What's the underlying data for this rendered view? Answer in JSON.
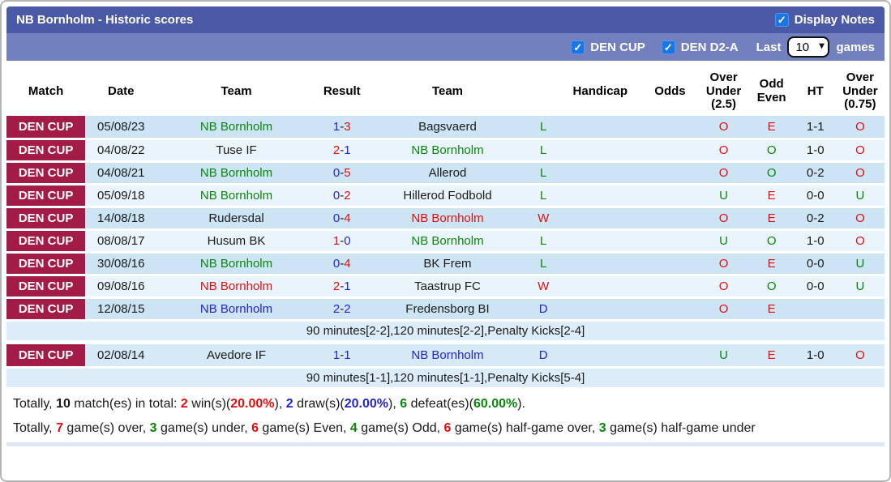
{
  "header": {
    "title": "NB Bornholm - Historic scores",
    "display_notes": {
      "label": "Display Notes",
      "checked": true
    }
  },
  "filters": {
    "leagues": [
      {
        "label": "DEN CUP",
        "checked": true
      },
      {
        "label": "DEN D2-A",
        "checked": true
      }
    ],
    "last_label": "Last",
    "games_count": "10",
    "games_label": "games"
  },
  "table": {
    "columns": [
      "Match",
      "Date",
      "Team",
      "Result",
      "Team",
      "",
      "Handicap",
      "Odds",
      "Over\nUnder\n(2.5)",
      "Odd\nEven",
      "HT",
      "Over\nUnder\n(0.75)"
    ],
    "rows": [
      {
        "type": "match",
        "shade": "a",
        "league": "DEN CUP",
        "date": "05/08/23",
        "team1": "NB Bornholm",
        "team1_color": "green",
        "score1": "1",
        "score1_color": "blue",
        "score2": "3",
        "score2_color": "red",
        "team2": "Bagsvaerd",
        "team2_color": "black",
        "wdl": "L",
        "wdl_color": "green",
        "handicap": "",
        "odds": "",
        "ou25": "O",
        "ou25_color": "red",
        "odd_even": "E",
        "odd_even_color": "red",
        "ht": "1-1",
        "ou075": "O",
        "ou075_color": "red"
      },
      {
        "type": "match",
        "shade": "b",
        "league": "DEN CUP",
        "date": "04/08/22",
        "team1": "Tuse IF",
        "team1_color": "black",
        "score1": "2",
        "score1_color": "red",
        "score2": "1",
        "score2_color": "blue",
        "team2": "NB Bornholm",
        "team2_color": "green",
        "wdl": "L",
        "wdl_color": "green",
        "handicap": "",
        "odds": "",
        "ou25": "O",
        "ou25_color": "red",
        "odd_even": "O",
        "odd_even_color": "green",
        "ht": "1-0",
        "ou075": "O",
        "ou075_color": "red"
      },
      {
        "type": "match",
        "shade": "a",
        "league": "DEN CUP",
        "date": "04/08/21",
        "team1": "NB Bornholm",
        "team1_color": "green",
        "score1": "0",
        "score1_color": "blue",
        "score2": "5",
        "score2_color": "red",
        "team2": "Allerod",
        "team2_color": "black",
        "wdl": "L",
        "wdl_color": "green",
        "handicap": "",
        "odds": "",
        "ou25": "O",
        "ou25_color": "red",
        "odd_even": "O",
        "odd_even_color": "green",
        "ht": "0-2",
        "ou075": "O",
        "ou075_color": "red"
      },
      {
        "type": "match",
        "shade": "b",
        "league": "DEN CUP",
        "date": "05/09/18",
        "team1": "NB Bornholm",
        "team1_color": "green",
        "score1": "0",
        "score1_color": "blue",
        "score2": "2",
        "score2_color": "red",
        "team2": "Hillerod Fodbold",
        "team2_color": "black",
        "wdl": "L",
        "wdl_color": "green",
        "handicap": "",
        "odds": "",
        "ou25": "U",
        "ou25_color": "green",
        "odd_even": "E",
        "odd_even_color": "red",
        "ht": "0-0",
        "ou075": "U",
        "ou075_color": "green"
      },
      {
        "type": "match",
        "shade": "a",
        "league": "DEN CUP",
        "date": "14/08/18",
        "team1": "Rudersdal",
        "team1_color": "black",
        "score1": "0",
        "score1_color": "blue",
        "score2": "4",
        "score2_color": "red",
        "team2": "NB Bornholm",
        "team2_color": "red",
        "wdl": "W",
        "wdl_color": "red",
        "handicap": "",
        "odds": "",
        "ou25": "O",
        "ou25_color": "red",
        "odd_even": "E",
        "odd_even_color": "red",
        "ht": "0-2",
        "ou075": "O",
        "ou075_color": "red"
      },
      {
        "type": "match",
        "shade": "b",
        "league": "DEN CUP",
        "date": "08/08/17",
        "team1": "Husum BK",
        "team1_color": "black",
        "score1": "1",
        "score1_color": "red",
        "score2": "0",
        "score2_color": "blue",
        "team2": "NB Bornholm",
        "team2_color": "green",
        "wdl": "L",
        "wdl_color": "green",
        "handicap": "",
        "odds": "",
        "ou25": "U",
        "ou25_color": "green",
        "odd_even": "O",
        "odd_even_color": "green",
        "ht": "1-0",
        "ou075": "O",
        "ou075_color": "red"
      },
      {
        "type": "match",
        "shade": "a",
        "league": "DEN CUP",
        "date": "30/08/16",
        "team1": "NB Bornholm",
        "team1_color": "green",
        "score1": "0",
        "score1_color": "blue",
        "score2": "4",
        "score2_color": "red",
        "team2": "BK Frem",
        "team2_color": "black",
        "wdl": "L",
        "wdl_color": "green",
        "handicap": "",
        "odds": "",
        "ou25": "O",
        "ou25_color": "red",
        "odd_even": "E",
        "odd_even_color": "red",
        "ht": "0-0",
        "ou075": "U",
        "ou075_color": "green"
      },
      {
        "type": "match",
        "shade": "b",
        "league": "DEN CUP",
        "date": "09/08/16",
        "team1": "NB Bornholm",
        "team1_color": "red",
        "score1": "2",
        "score1_color": "red",
        "score2": "1",
        "score2_color": "blue",
        "team2": "Taastrup FC",
        "team2_color": "black",
        "wdl": "W",
        "wdl_color": "red",
        "handicap": "",
        "odds": "",
        "ou25": "O",
        "ou25_color": "red",
        "odd_even": "O",
        "odd_even_color": "green",
        "ht": "0-0",
        "ou075": "U",
        "ou075_color": "green"
      },
      {
        "type": "match",
        "shade": "a",
        "league": "DEN CUP",
        "date": "12/08/15",
        "team1": "NB Bornholm",
        "team1_color": "blue",
        "score1": "2",
        "score1_color": "blue",
        "score2": "2",
        "score2_color": "blue",
        "team2": "Fredensborg BI",
        "team2_color": "black",
        "wdl": "D",
        "wdl_color": "blue",
        "handicap": "",
        "odds": "",
        "ou25": "O",
        "ou25_color": "red",
        "odd_even": "E",
        "odd_even_color": "red",
        "ht": "",
        "ou075": ""
      },
      {
        "type": "note",
        "text": "90 minutes[2-2],120 minutes[2-2],Penalty Kicks[2-4]"
      },
      {
        "type": "spacer"
      },
      {
        "type": "match",
        "shade": "n",
        "league": "DEN CUP",
        "date": "02/08/14",
        "team1": "Avedore IF",
        "team1_color": "black",
        "score1": "1",
        "score1_color": "blue",
        "score2": "1",
        "score2_color": "blue",
        "team2": "NB Bornholm",
        "team2_color": "blue",
        "wdl": "D",
        "wdl_color": "blue",
        "handicap": "",
        "odds": "",
        "ou25": "U",
        "ou25_color": "green",
        "odd_even": "E",
        "odd_even_color": "red",
        "ht": "1-0",
        "ou075": "O",
        "ou075_color": "red"
      },
      {
        "type": "note",
        "text": "90 minutes[1-1],120 minutes[1-1],Penalty Kicks[5-4]"
      }
    ]
  },
  "summary": {
    "lines": [
      [
        {
          "text": "Totally, ",
          "color": "black",
          "bold": false
        },
        {
          "text": "10",
          "color": "black",
          "bold": true
        },
        {
          "text": " match(es) in total: ",
          "color": "black",
          "bold": false
        },
        {
          "text": "2",
          "color": "red",
          "bold": true
        },
        {
          "text": " win(s)(",
          "color": "black",
          "bold": false
        },
        {
          "text": "20.00%",
          "color": "red",
          "bold": true
        },
        {
          "text": "), ",
          "color": "black",
          "bold": false
        },
        {
          "text": "2",
          "color": "blue",
          "bold": true
        },
        {
          "text": " draw(s)(",
          "color": "black",
          "bold": false
        },
        {
          "text": "20.00%",
          "color": "blue",
          "bold": true
        },
        {
          "text": "), ",
          "color": "black",
          "bold": false
        },
        {
          "text": "6",
          "color": "green",
          "bold": true
        },
        {
          "text": " defeat(es)(",
          "color": "black",
          "bold": false
        },
        {
          "text": "60.00%",
          "color": "green",
          "bold": true
        },
        {
          "text": ").",
          "color": "black",
          "bold": false
        }
      ],
      [
        {
          "text": "Totally, ",
          "color": "black",
          "bold": false
        },
        {
          "text": "7",
          "color": "red",
          "bold": true
        },
        {
          "text": " game(s) over, ",
          "color": "black",
          "bold": false
        },
        {
          "text": "3",
          "color": "green",
          "bold": true
        },
        {
          "text": " game(s) under, ",
          "color": "black",
          "bold": false
        },
        {
          "text": "6",
          "color": "red",
          "bold": true
        },
        {
          "text": " game(s) Even, ",
          "color": "black",
          "bold": false
        },
        {
          "text": "4",
          "color": "green",
          "bold": true
        },
        {
          "text": " game(s) Odd, ",
          "color": "black",
          "bold": false
        },
        {
          "text": "6",
          "color": "red",
          "bold": true
        },
        {
          "text": " game(s) half-game over, ",
          "color": "black",
          "bold": false
        },
        {
          "text": "3",
          "color": "green",
          "bold": true
        },
        {
          "text": " game(s) half-game under",
          "color": "black",
          "bold": false
        }
      ]
    ]
  }
}
